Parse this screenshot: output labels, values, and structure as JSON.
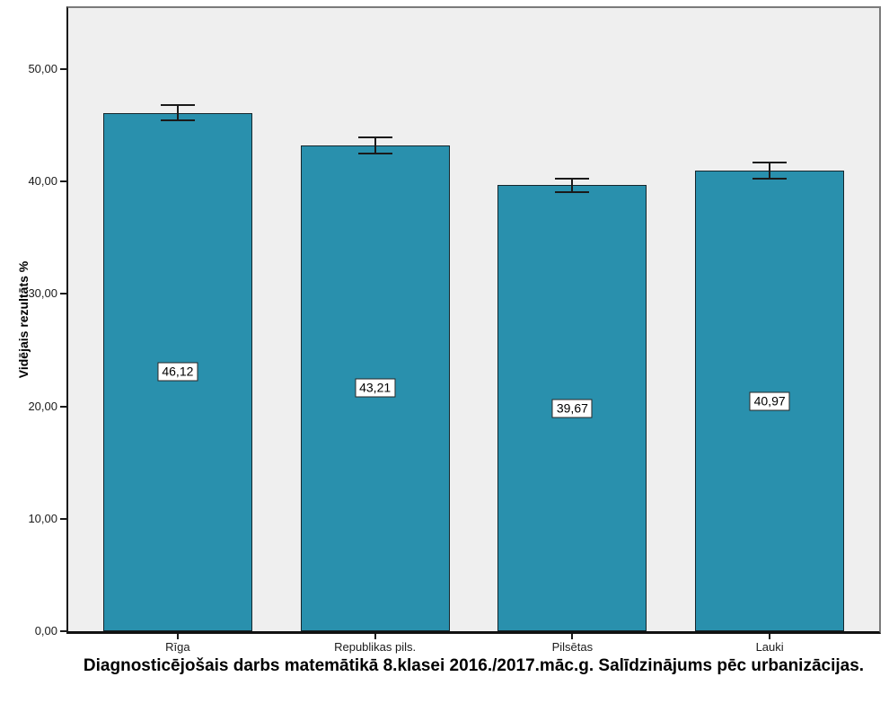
{
  "figure": {
    "title": "Diagnosticējošais darbs matemātikā 8.klasei 2016./2017.māc.g. Salīdzinājums pēc urbanizācijas."
  },
  "chart_data": {
    "type": "bar",
    "title": "Diagnosticējošais darbs matemātikā 8.klasei 2016./2017.māc.g. Salīdzinājums pēc urbanizācijas.",
    "xlabel": "",
    "ylabel": "Vidējais rezultāts %",
    "categories": [
      "Rīga",
      "Republikas pils.",
      "Pilsētas",
      "Lauki"
    ],
    "values": [
      46.12,
      43.21,
      39.67,
      40.97
    ],
    "value_labels": [
      "46,12",
      "43,21",
      "39,67",
      "40,97"
    ],
    "error_bars_plus_minus": [
      0.65,
      0.7,
      0.6,
      0.7
    ],
    "ylim": [
      0,
      55.43
    ],
    "yticks": [
      0,
      10,
      20,
      30,
      40,
      50
    ],
    "ytick_labels": [
      "0,00",
      "10,00",
      "20,00",
      "30,00",
      "40,00",
      "50,00"
    ],
    "grid": false,
    "legend": null,
    "colors": {
      "bar_fill": "#2990AD",
      "bar_border": "#15262c",
      "plot_background": "#EFEFEF",
      "axis_line": "#1a1a1a",
      "frame_border": "#7a7a7a",
      "error_bar": "#1a1a1a",
      "label_box_background": "#ffffff",
      "label_box_border": "#262626"
    }
  }
}
